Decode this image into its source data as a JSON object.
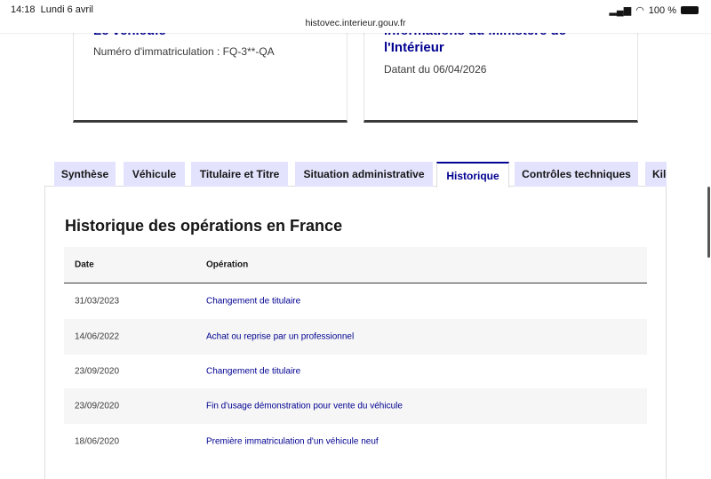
{
  "status_bar": {
    "time": "14:18",
    "date": "Lundi 6 avril",
    "battery": "100 %"
  },
  "browser": {
    "url": "histovec.interieur.gouv.fr"
  },
  "cards": [
    {
      "title": "Le véhicule",
      "subtitle": "Numéro d'immatriculation : FQ-3**-QA"
    },
    {
      "title_line1": "Informations du Ministère de",
      "title_line2": "l'Intérieur",
      "subtitle": "Datant du 06/04/2026"
    }
  ],
  "tabs": [
    {
      "label": "Synthèse"
    },
    {
      "label": "Véhicule"
    },
    {
      "label": "Titulaire et Titre"
    },
    {
      "label": "Situation administrative"
    },
    {
      "label": "Historique",
      "active": true
    },
    {
      "label": "Contrôles techniques"
    },
    {
      "label": "Kilométrage"
    }
  ],
  "section": {
    "title": "Historique des opérations en France",
    "columns": [
      "Date",
      "Opération"
    ],
    "rows": [
      {
        "date": "31/03/2023",
        "operation": "Changement de titulaire"
      },
      {
        "date": "14/06/2022",
        "operation": "Achat ou reprise par un professionnel"
      },
      {
        "date": "23/09/2020",
        "operation": "Changement de titulaire"
      },
      {
        "date": "23/09/2020",
        "operation": "Fin d'usage démonstration pour vente du véhicule"
      },
      {
        "date": "18/06/2020",
        "operation": "Première immatriculation d'un véhicule neuf"
      }
    ]
  },
  "colors": {
    "accent": "#000091",
    "tab_bg": "#e3e3fd"
  }
}
